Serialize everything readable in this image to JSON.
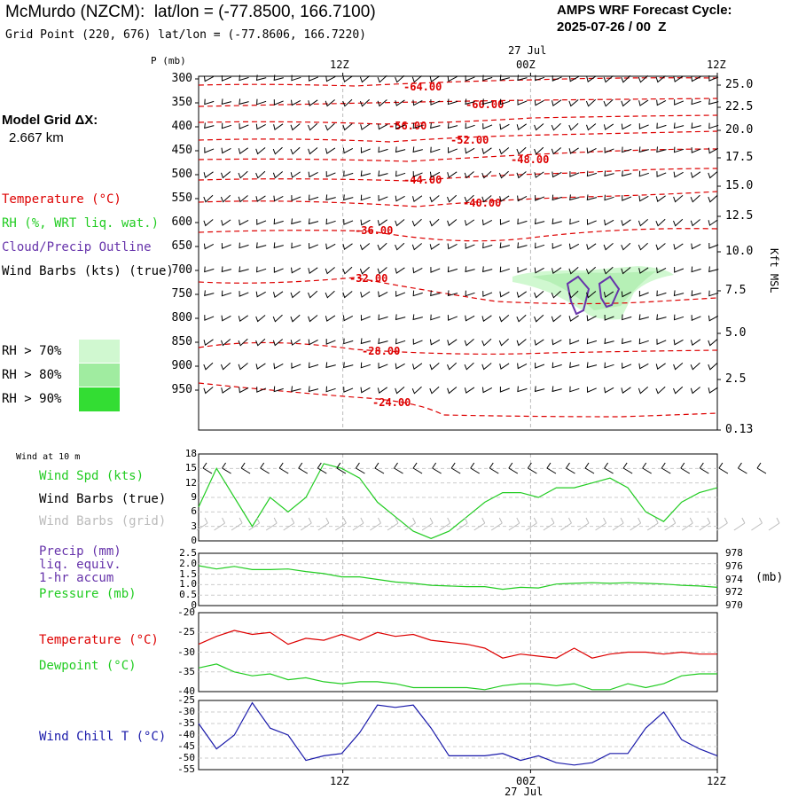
{
  "header": {
    "title": "McMurdo (NZCM):  lat/lon = (-77.8500, 166.7100)",
    "grid_point": "Grid Point (220, 676) lat/lon = (-77.8606, 166.7220)",
    "cycle_line1": "AMPS WRF Forecast Cycle:",
    "cycle_line2": "2025-07-26 / 00  Z"
  },
  "left_labels": {
    "model_grid_1": "Model Grid ΔX:",
    "model_grid_2": "2.667 km",
    "temperature": "Temperature (°C)",
    "rh": "RH (%, WRT liq. wat.)",
    "cloud": "Cloud/Precip Outline",
    "wind_barbs": "Wind Barbs (kts) (true)",
    "rh70": "RH > 70%",
    "rh80": "RH > 80%",
    "rh90": "RH > 90%",
    "wind10m": "Wind at 10 m",
    "wind_spd": "Wind Spd (kts)",
    "wind_barbs_true": "Wind Barbs (true)",
    "wind_barbs_grid": "Wind Barbs (grid)",
    "precip_1": "Precip (mm)",
    "precip_2": "liq. equiv.",
    "precip_3": "1-hr accum",
    "pressure": "Pressure (mb)",
    "temp2": "Temperature (°C)",
    "dewpoint": "Dewpoint (°C)",
    "windchill": "Wind Chill T (°C)"
  },
  "colors": {
    "temperature": "#dd0000",
    "rh_green": "#22cc22",
    "rh70": "#d0f8d0",
    "rh80": "#a0eca0",
    "rh90": "#33dd33",
    "cloud": "#6633aa",
    "grid_barbs": "#bbbbbb",
    "windchill": "#1a1aaa"
  },
  "time_axis": {
    "top_date": "27 Jul",
    "bottom_date": "27 Jul",
    "ticks": [
      {
        "label": "12Z",
        "frac": 0.278
      },
      {
        "label": "00Z",
        "frac": 0.64
      },
      {
        "label": "12Z",
        "frac": 1.0
      }
    ]
  },
  "main_chart": {
    "p_label": "P (mb)",
    "kft_label": "Kft MSL",
    "pressure_ticks": [
      "300",
      "350",
      "400",
      "450",
      "500",
      "550",
      "600",
      "650",
      "700",
      "750",
      "800",
      "850",
      "900",
      "950"
    ],
    "height_ticks": [
      "25.0",
      "22.5",
      "20.0",
      "17.5",
      "15.0",
      "12.5",
      "10.0",
      "7.5",
      "5.0",
      "2.5",
      "0.13"
    ],
    "isotherm_labels": [
      "-64.00",
      "-60.00",
      "-56.00",
      "-52.00",
      "-48.00",
      "-44.00",
      "-40.00",
      "-36.00",
      "-32.00",
      "-28.00",
      "-24.00"
    ]
  },
  "panels": {
    "wind": {
      "ticks": [
        "18",
        "15",
        "12",
        "9",
        "6",
        "3",
        "0"
      ]
    },
    "precip": {
      "left_ticks": [
        "2.5",
        "2.0",
        "1.5",
        "1.0",
        "0.5",
        "0"
      ],
      "right_ticks": [
        "978",
        "976",
        "974",
        "972",
        "970"
      ],
      "right_unit": "(mb)"
    },
    "temp": {
      "ticks": [
        "-20",
        "-25",
        "-30",
        "-35",
        "-40"
      ]
    },
    "chill": {
      "ticks": [
        "-25",
        "-30",
        "-35",
        "-40",
        "-45",
        "-50",
        "-55"
      ]
    }
  },
  "chart_data": [
    {
      "type": "line",
      "title": "Wind Spd (kts)",
      "ylim": [
        0,
        18
      ],
      "series": [
        {
          "name": "Wind Spd (kts)",
          "values": [
            7,
            15,
            9,
            3,
            9,
            6,
            9,
            16,
            15,
            13,
            8,
            5,
            2,
            0.5,
            2,
            5,
            8,
            10,
            10,
            9,
            11,
            11,
            12,
            13,
            11,
            6,
            4,
            8,
            10,
            11
          ]
        }
      ]
    },
    {
      "type": "line",
      "title": "Pressure (mb)",
      "ylim": [
        970,
        978
      ],
      "series": [
        {
          "name": "Pressure (mb)",
          "values": [
            976.1,
            975.6,
            976.0,
            975.5,
            975.5,
            975.6,
            975.2,
            974.9,
            974.4,
            974.4,
            974.0,
            973.6,
            973.4,
            973.1,
            973.0,
            972.9,
            972.9,
            972.5,
            972.8,
            972.7,
            973.3,
            973.4,
            973.5,
            973.4,
            973.5,
            973.4,
            973.3,
            973.1,
            973.0,
            972.8
          ]
        }
      ]
    },
    {
      "type": "line",
      "title": "Temperature / Dewpoint (°C)",
      "ylim": [
        -40,
        -20
      ],
      "series": [
        {
          "name": "Temperature (°C)",
          "values": [
            -28,
            -26,
            -24.5,
            -25.5,
            -25,
            -28,
            -26.5,
            -27,
            -25.5,
            -27,
            -25,
            -26,
            -25.5,
            -27,
            -27.5,
            -28,
            -29,
            -31.5,
            -30.5,
            -31,
            -31.5,
            -29,
            -31.5,
            -30.5,
            -30,
            -30,
            -30.5,
            -30,
            -30.5,
            -30.5
          ]
        },
        {
          "name": "Dewpoint (°C)",
          "values": [
            -34,
            -33,
            -35,
            -36,
            -35.5,
            -37,
            -36.5,
            -37.5,
            -38,
            -37.5,
            -37.5,
            -38,
            -39,
            -39,
            -39,
            -39,
            -39.5,
            -38.5,
            -38,
            -38,
            -38.5,
            -38,
            -39.5,
            -39.5,
            -38,
            -39,
            -38,
            -36,
            -35.5,
            -35.5
          ]
        }
      ]
    },
    {
      "type": "line",
      "title": "Wind Chill T (°C)",
      "ylim": [
        -55,
        -25
      ],
      "series": [
        {
          "name": "Wind Chill T (°C)",
          "values": [
            -35,
            -46,
            -40,
            -26,
            -37,
            -40,
            -51,
            -49,
            -48,
            -39,
            -27,
            -28,
            -27,
            -37,
            -49,
            -49,
            -49,
            -48,
            -51,
            -49,
            -52,
            -53,
            -52,
            -48,
            -48,
            -37,
            -30,
            -42,
            -46,
            -49
          ]
        }
      ]
    }
  ]
}
